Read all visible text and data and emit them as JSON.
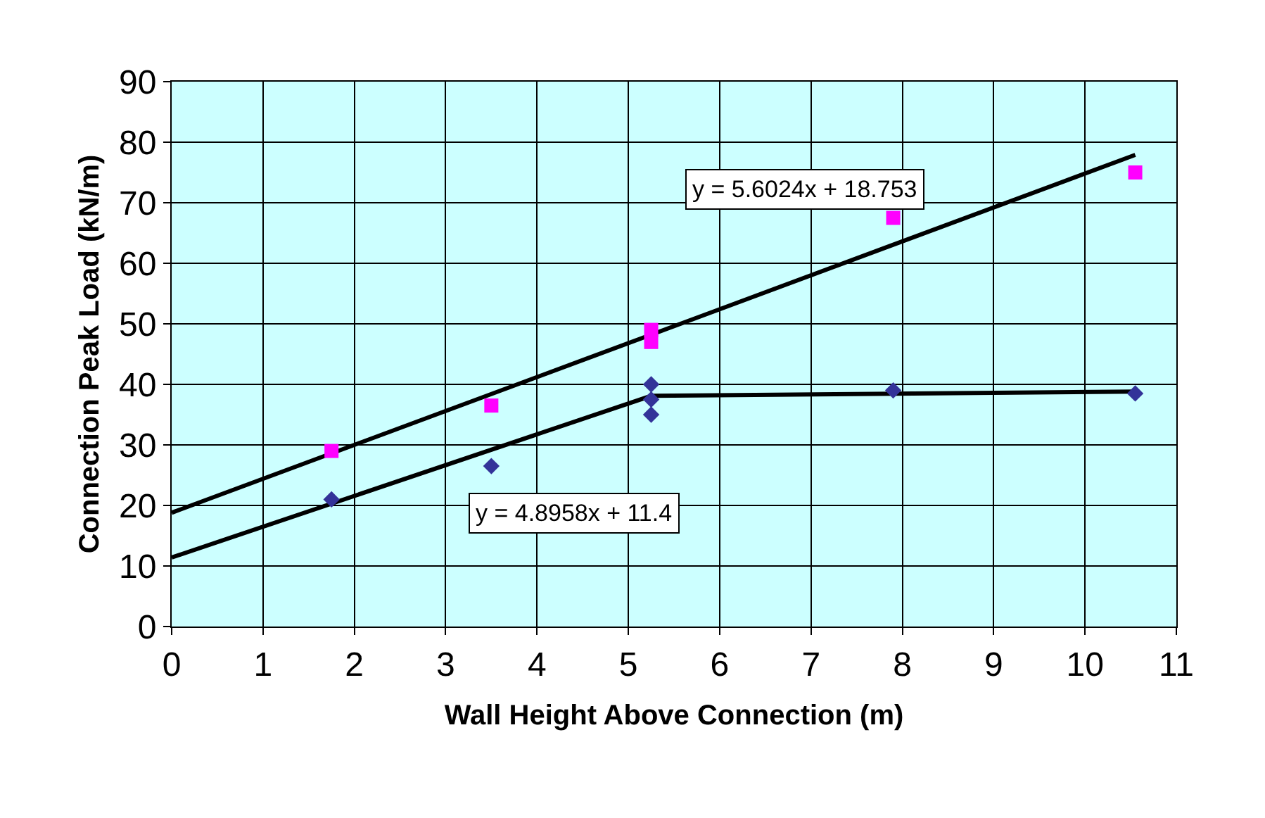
{
  "chart_data": {
    "type": "scatter",
    "xlabel": "Wall Height Above Connection (m)",
    "ylabel": "Connection Peak Load (kN/m)",
    "series": [
      {
        "type": "line",
        "color": "#000000",
        "marker": "none",
        "x": [
          0,
          10.55
        ],
        "values": [
          18.8,
          77.9
        ]
      },
      {
        "type": "line",
        "color": "#000000",
        "marker": "none",
        "x": [
          0,
          5.25,
          10.55
        ],
        "values": [
          11.4,
          38.1,
          38.8
        ]
      },
      {
        "color": "#333399",
        "marker": "diamond",
        "x": [
          1.75,
          3.5,
          5.25,
          5.25,
          5.25,
          7.9,
          10.55
        ],
        "values": [
          21,
          26.5,
          40,
          37.5,
          35,
          39,
          38.5
        ]
      },
      {
        "color": "#ff00ff",
        "marker": "square",
        "x": [
          1.75,
          3.5,
          5.25,
          5.25,
          7.9,
          10.55
        ],
        "values": [
          29,
          36.5,
          49,
          47,
          67.5,
          75
        ]
      }
    ],
    "annotations": [
      "y = 5.6024x + 18.753",
      "y = 4.8958x + 11.4"
    ],
    "xlim": [
      0,
      11
    ],
    "xticks": [
      0,
      1,
      2,
      3,
      4,
      5,
      6,
      7,
      8,
      9,
      10,
      11
    ],
    "ylim": [
      0,
      90
    ],
    "yticks": [
      0,
      10,
      20,
      30,
      40,
      50,
      60,
      70,
      80,
      90
    ],
    "grid": true
  }
}
